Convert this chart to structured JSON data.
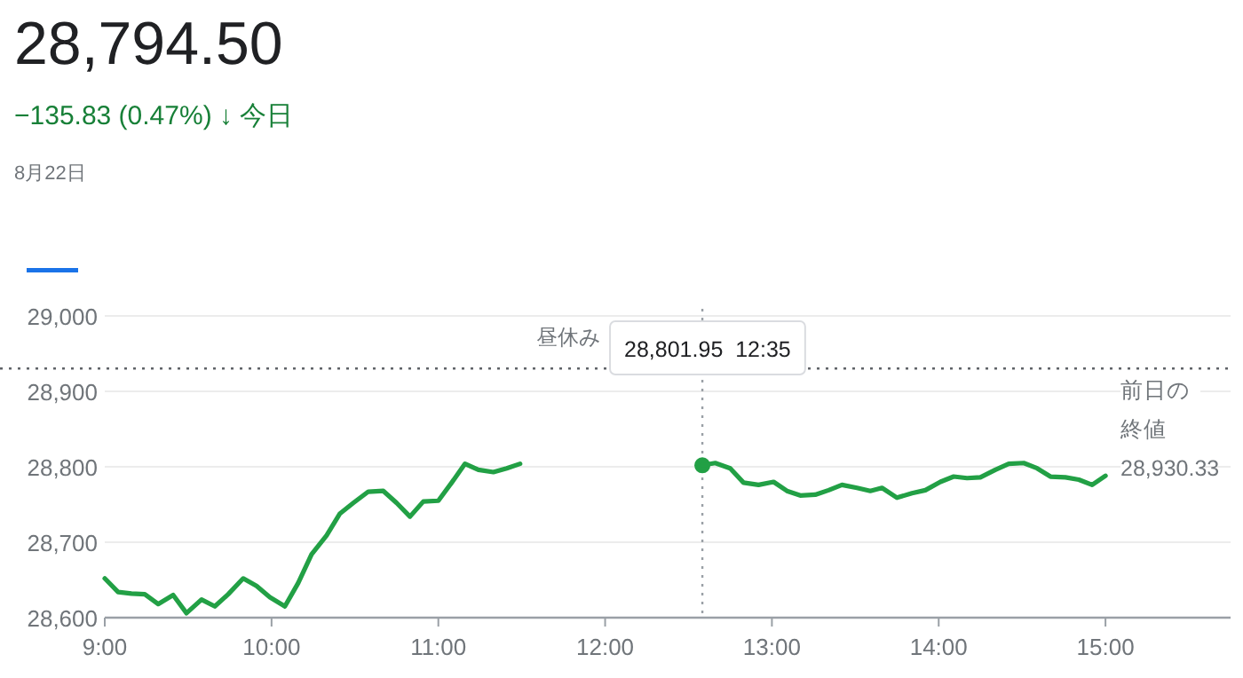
{
  "chart_data": {
    "type": "line",
    "title": "28,794.50",
    "subtitle": "−135.83 (0.47%) ↓ 今日",
    "annotations": [
      "8月22日",
      "昼休み",
      "28,801.95  12:35"
    ],
    "series": [
      {
        "color": "#22a045",
        "x": [
          9.0,
          9.08,
          9.16,
          9.24,
          9.32,
          9.41,
          9.49,
          9.58,
          9.66,
          9.74,
          9.83,
          9.91,
          9.99,
          10.08,
          10.16,
          10.24,
          10.33,
          10.41,
          10.49,
          10.58,
          10.67,
          10.75,
          10.83,
          10.91,
          11.0,
          11.08,
          11.16,
          11.24,
          11.33,
          11.41,
          11.49
        ],
        "values": [
          28652,
          28634,
          28632,
          28631,
          28618,
          28630,
          28606,
          28624,
          28615,
          28631,
          28652,
          28642,
          28627,
          28615,
          28646,
          28684,
          28709,
          28738,
          28752,
          28767,
          28768,
          28752,
          28734,
          28754,
          28755,
          28779,
          28804,
          28796,
          28793,
          28798,
          28804
        ]
      },
      {
        "color": "#22a045",
        "x": [
          12.583,
          12.66,
          12.75,
          12.83,
          12.92,
          13.01,
          13.09,
          13.17,
          13.26,
          13.34,
          13.42,
          13.51,
          13.59,
          13.66,
          13.75,
          13.84,
          13.92,
          14.01,
          14.09,
          14.17,
          14.25,
          14.34,
          14.42,
          14.51,
          14.59,
          14.67,
          14.76,
          14.84,
          14.92,
          15.0
        ],
        "values": [
          28802,
          28805,
          28798,
          28779,
          28776,
          28780,
          28768,
          28762,
          28763,
          28769,
          28776,
          28772,
          28768,
          28772,
          28759,
          28765,
          28769,
          28780,
          28787,
          28785,
          28786,
          28796,
          28804,
          28805,
          28798,
          28787,
          28786,
          28783,
          28776,
          28788
        ]
      }
    ],
    "xlim": [
      9,
      15.75
    ],
    "ylim": [
      28600,
      29000
    ],
    "xticks": [
      {
        "value": 9,
        "label": "9:00"
      },
      {
        "value": 10,
        "label": "10:00"
      },
      {
        "value": 11,
        "label": "11:00"
      },
      {
        "value": 12,
        "label": "12:00"
      },
      {
        "value": 13,
        "label": "13:00"
      },
      {
        "value": 14,
        "label": "14:00"
      },
      {
        "value": 15,
        "label": "15:00"
      }
    ],
    "yticks": [
      {
        "value": 28600,
        "label": "28,600"
      },
      {
        "value": 28700,
        "label": "28,700"
      },
      {
        "value": 28800,
        "label": "28,800"
      },
      {
        "value": 28900,
        "label": "28,900"
      },
      {
        "value": 29000,
        "label": "29,000"
      }
    ],
    "ref_lines": [
      {
        "axis": "y",
        "value": 28930.33,
        "label": "前日の終値 28,930.33",
        "line_style": "dotted",
        "color": "#5f6368"
      },
      {
        "axis": "x",
        "value": 12.583,
        "line_style": "dotted",
        "color": "#9aa0a6"
      }
    ],
    "grid": "y",
    "marker": "none",
    "line_style": "solid"
  }
}
